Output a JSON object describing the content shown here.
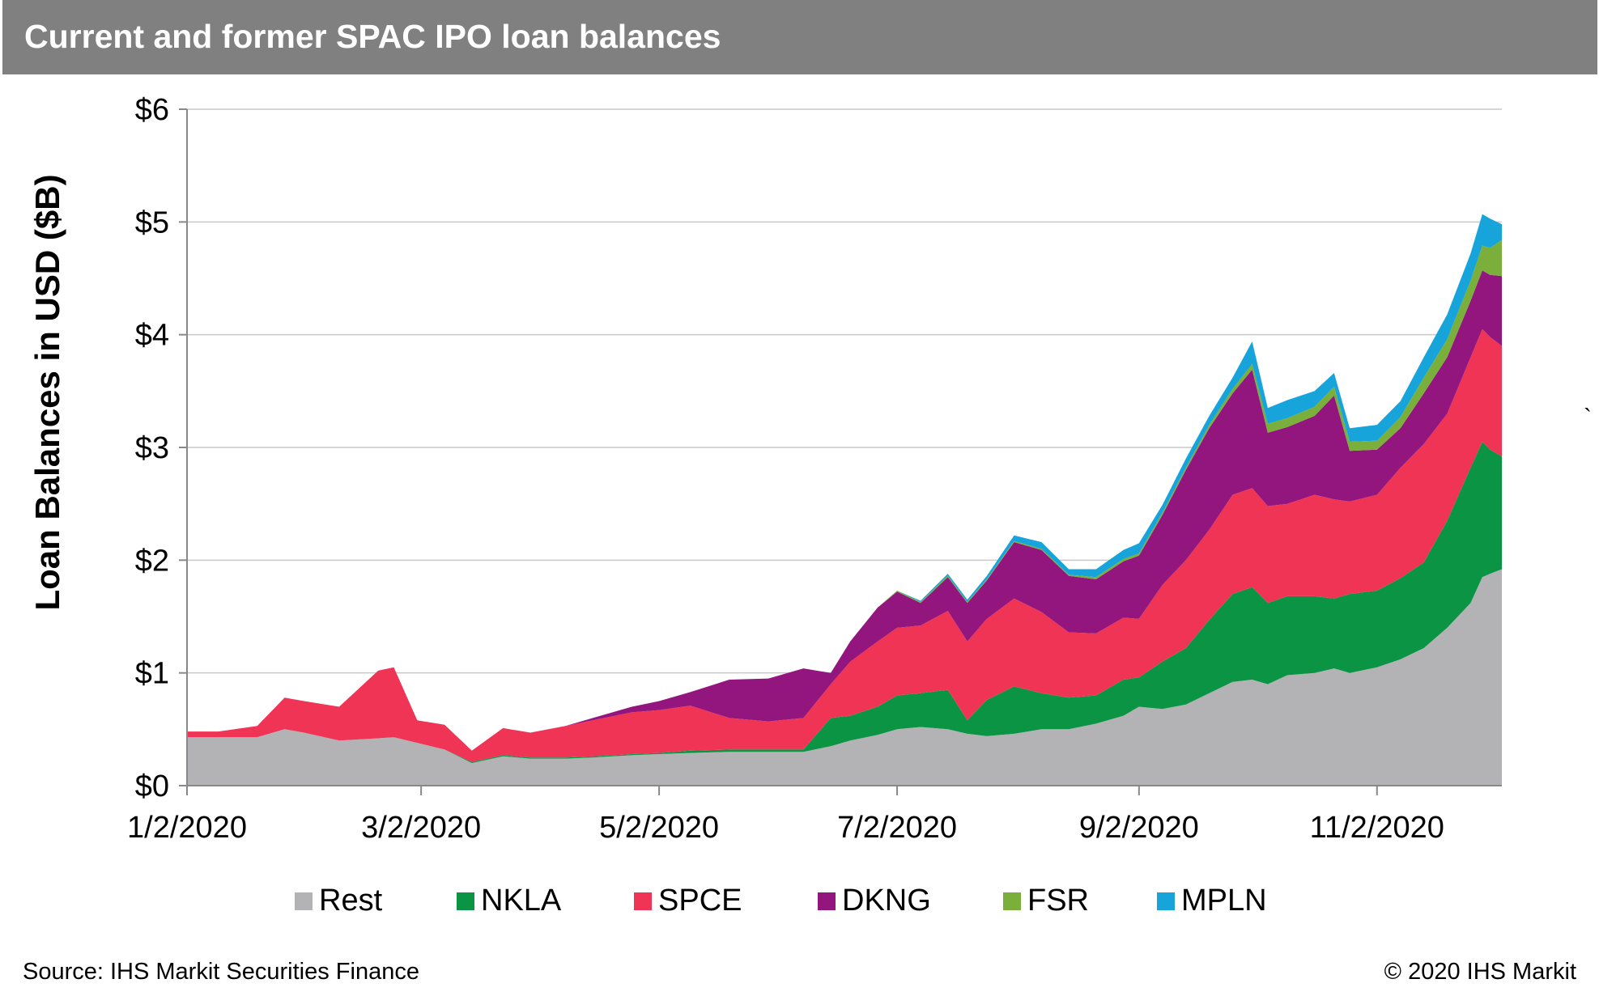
{
  "title": "Current and former SPAC IPO loan balances",
  "source": "Source: IHS Markit Securities Finance",
  "copyright": "© 2020 IHS Markit",
  "stray_mark": "`",
  "chart_data": {
    "type": "area",
    "stacked": true,
    "ylabel": "Loan Balances in USD ($B)",
    "xlabel": "",
    "ylim": [
      0,
      6
    ],
    "yticks": [
      0,
      1,
      2,
      3,
      4,
      5,
      6
    ],
    "ytick_labels": [
      "$0",
      "$1",
      "$2",
      "$3",
      "$4",
      "$5",
      "$6"
    ],
    "xlim": [
      "2020-01-02",
      "2020-12-04"
    ],
    "xtick_labels": [
      "1/2/2020",
      "3/2/2020",
      "5/2/2020",
      "7/2/2020",
      "9/2/2020",
      "11/2/2020"
    ],
    "xtick_dates": [
      "2020-01-02",
      "2020-03-02",
      "2020-05-02",
      "2020-07-02",
      "2020-09-02",
      "2020-11-02"
    ],
    "grid": "horizontal",
    "legend_position": "bottom",
    "x": [
      "2020-01-02",
      "2020-01-10",
      "2020-01-20",
      "2020-01-27",
      "2020-02-01",
      "2020-02-10",
      "2020-02-20",
      "2020-02-24",
      "2020-03-01",
      "2020-03-08",
      "2020-03-15",
      "2020-03-23",
      "2020-03-30",
      "2020-04-08",
      "2020-04-15",
      "2020-04-25",
      "2020-05-02",
      "2020-05-10",
      "2020-05-20",
      "2020-05-30",
      "2020-06-08",
      "2020-06-15",
      "2020-06-20",
      "2020-06-27",
      "2020-07-02",
      "2020-07-08",
      "2020-07-15",
      "2020-07-20",
      "2020-07-25",
      "2020-08-01",
      "2020-08-08",
      "2020-08-15",
      "2020-08-22",
      "2020-08-29",
      "2020-09-02",
      "2020-09-08",
      "2020-09-14",
      "2020-09-20",
      "2020-09-26",
      "2020-10-01",
      "2020-10-05",
      "2020-10-10",
      "2020-10-17",
      "2020-10-22",
      "2020-10-26",
      "2020-11-02",
      "2020-11-08",
      "2020-11-14",
      "2020-11-20",
      "2020-11-26",
      "2020-11-29",
      "2020-12-01",
      "2020-12-04"
    ],
    "series": [
      {
        "name": "Rest",
        "color": "#b3b3b5",
        "values": [
          0.43,
          0.43,
          0.43,
          0.5,
          0.47,
          0.4,
          0.42,
          0.43,
          0.38,
          0.32,
          0.2,
          0.26,
          0.24,
          0.24,
          0.25,
          0.27,
          0.28,
          0.29,
          0.3,
          0.3,
          0.3,
          0.35,
          0.4,
          0.45,
          0.5,
          0.52,
          0.5,
          0.46,
          0.44,
          0.46,
          0.5,
          0.5,
          0.55,
          0.62,
          0.7,
          0.68,
          0.72,
          0.82,
          0.92,
          0.94,
          0.9,
          0.98,
          1.0,
          1.04,
          1.0,
          1.05,
          1.12,
          1.22,
          1.4,
          1.62,
          1.85,
          1.88,
          1.92
        ]
      },
      {
        "name": "NKLA",
        "color": "#0b9444",
        "values": [
          0,
          0,
          0,
          0,
          0,
          0,
          0,
          0,
          0,
          0,
          0.01,
          0.01,
          0.01,
          0.01,
          0.01,
          0.01,
          0.01,
          0.02,
          0.02,
          0.02,
          0.02,
          0.25,
          0.22,
          0.25,
          0.3,
          0.3,
          0.35,
          0.12,
          0.32,
          0.42,
          0.32,
          0.28,
          0.25,
          0.32,
          0.26,
          0.42,
          0.5,
          0.65,
          0.78,
          0.82,
          0.72,
          0.7,
          0.68,
          0.62,
          0.7,
          0.68,
          0.72,
          0.76,
          0.95,
          1.2,
          1.2,
          1.1,
          1.0
        ]
      },
      {
        "name": "SPCE",
        "color": "#ef3456",
        "values": [
          0.05,
          0.05,
          0.1,
          0.28,
          0.28,
          0.3,
          0.6,
          0.62,
          0.2,
          0.22,
          0.1,
          0.24,
          0.22,
          0.28,
          0.32,
          0.37,
          0.38,
          0.4,
          0.28,
          0.25,
          0.28,
          0.3,
          0.48,
          0.58,
          0.6,
          0.6,
          0.7,
          0.7,
          0.72,
          0.78,
          0.72,
          0.58,
          0.55,
          0.55,
          0.52,
          0.68,
          0.78,
          0.8,
          0.88,
          0.88,
          0.86,
          0.82,
          0.9,
          0.88,
          0.82,
          0.85,
          0.98,
          1.05,
          0.95,
          0.98,
          1.0,
          1.0,
          0.98
        ]
      },
      {
        "name": "DKNG",
        "color": "#92167e",
        "values": [
          0,
          0,
          0,
          0,
          0,
          0,
          0,
          0,
          0,
          0,
          0,
          0,
          0,
          0,
          0.02,
          0.05,
          0.08,
          0.12,
          0.34,
          0.38,
          0.44,
          0.1,
          0.18,
          0.3,
          0.32,
          0.2,
          0.3,
          0.34,
          0.34,
          0.5,
          0.55,
          0.5,
          0.48,
          0.5,
          0.56,
          0.62,
          0.8,
          0.9,
          0.9,
          1.05,
          0.65,
          0.68,
          0.7,
          0.92,
          0.45,
          0.4,
          0.35,
          0.45,
          0.5,
          0.5,
          0.52,
          0.55,
          0.62
        ]
      },
      {
        "name": "FSR",
        "color": "#7aaf3b",
        "values": [
          0,
          0,
          0,
          0,
          0,
          0,
          0,
          0,
          0,
          0,
          0,
          0,
          0,
          0,
          0,
          0,
          0,
          0,
          0,
          0,
          0,
          0,
          0,
          0,
          0.01,
          0.01,
          0.01,
          0.01,
          0.01,
          0.01,
          0.01,
          0.01,
          0.02,
          0.02,
          0.02,
          0.02,
          0.02,
          0.03,
          0.04,
          0.05,
          0.08,
          0.08,
          0.08,
          0.08,
          0.08,
          0.08,
          0.1,
          0.14,
          0.16,
          0.18,
          0.22,
          0.24,
          0.32
        ]
      },
      {
        "name": "MPLN",
        "color": "#17a4db",
        "values": [
          0,
          0,
          0,
          0,
          0,
          0,
          0,
          0,
          0,
          0,
          0,
          0,
          0,
          0,
          0,
          0,
          0,
          0,
          0,
          0,
          0,
          0,
          0,
          0,
          0,
          0.01,
          0.02,
          0.02,
          0.03,
          0.05,
          0.06,
          0.05,
          0.07,
          0.08,
          0.09,
          0.07,
          0.08,
          0.08,
          0.1,
          0.2,
          0.14,
          0.16,
          0.14,
          0.12,
          0.12,
          0.14,
          0.14,
          0.18,
          0.22,
          0.24,
          0.28,
          0.26,
          0.14
        ]
      }
    ]
  }
}
